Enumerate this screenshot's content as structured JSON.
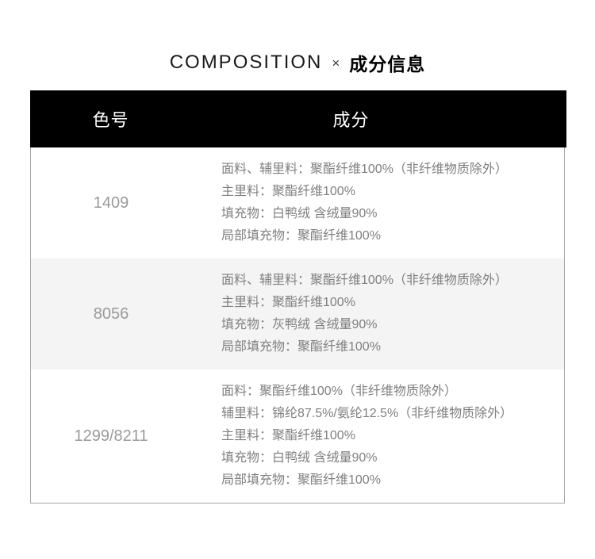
{
  "title": {
    "english": "COMPOSITION",
    "separator": "×",
    "chinese": "成分信息"
  },
  "table": {
    "header": {
      "color_label": "色号",
      "composition_label": "成分"
    },
    "rows": [
      {
        "color_code": "1409",
        "lines": [
          "面料、辅里料：聚酯纤维100%（非纤维物质除外）",
          "主里料：聚酯纤维100%",
          "填充物：白鸭绒 含绒量90%",
          "局部填充物：聚酯纤维100%"
        ]
      },
      {
        "color_code": "8056",
        "lines": [
          "面料、辅里料：聚酯纤维100%（非纤维物质除外）",
          "主里料：聚酯纤维100%",
          "填充物：灰鸭绒 含绒量90%",
          "局部填充物：聚酯纤维100%"
        ]
      },
      {
        "color_code": "1299/8211",
        "lines": [
          "面料：聚酯纤维100%（非纤维物质除外）",
          "辅里料：锦纶87.5%/氨纶12.5%（非纤维物质除外）",
          "主里料：聚酯纤维100%",
          "填充物：白鸭绒 含绒量90%",
          "局部填充物：聚酯纤维100%"
        ]
      }
    ]
  },
  "colors": {
    "header_bg": "#000000",
    "header_text": "#ffffff",
    "alt_row_bg": "#f4f4f4",
    "body_text": "#808080",
    "color_code_text": "#9a9a9a",
    "border": "#a6a6a6",
    "title_text": "#000000"
  }
}
